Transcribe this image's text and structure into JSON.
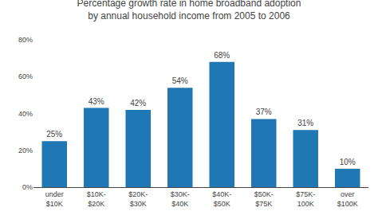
{
  "chart_data": {
    "type": "bar",
    "title": "Percentage growth rate in home broadband adoption\nby annual household income from 2005 to 2006",
    "categories": [
      "under\n$10K",
      "$10K-\n$20K",
      "$20K-\n$30K",
      "$30K-\n$40K",
      "$40K-\n$50K",
      "$50K-\n$75K",
      "$75K-\n100K",
      "over\n$100K"
    ],
    "values": [
      25,
      43,
      42,
      54,
      68,
      37,
      31,
      10
    ],
    "data_labels": true,
    "value_labels": [
      "25%",
      "43%",
      "42%",
      "54%",
      "68%",
      "37%",
      "31%",
      "10%"
    ],
    "ylim": [
      0,
      80
    ],
    "yticks": [
      {
        "value": 0,
        "label": "0%"
      },
      {
        "value": 20,
        "label": "20%"
      },
      {
        "value": 40,
        "label": "40%"
      },
      {
        "value": 60,
        "label": "60%"
      },
      {
        "value": 80,
        "label": "80%"
      }
    ],
    "grid": false
  }
}
